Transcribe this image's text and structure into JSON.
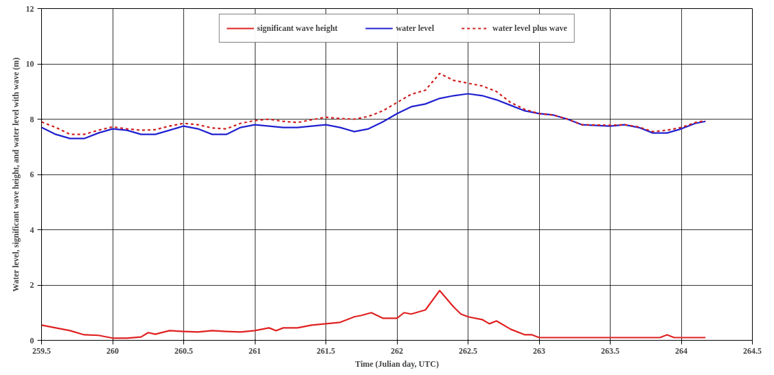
{
  "chart_data": {
    "type": "line",
    "xlabel": "Time (Julian day, UTC)",
    "ylabel": "Water level, significant wave height, and water level with wave (m)",
    "xlim": [
      259.5,
      264.5
    ],
    "xticks": [
      259.5,
      260,
      260.5,
      261,
      261.5,
      262,
      262.5,
      263,
      263.5,
      264,
      264.5
    ],
    "ylim": [
      0,
      12
    ],
    "yticks": [
      0,
      2,
      4,
      6,
      8,
      10,
      12
    ],
    "grid": true,
    "legend": "top",
    "marker": "none",
    "series": [
      {
        "name": "significant wave height",
        "color": "#e02020",
        "line_style": "solid",
        "x": [
          259.5,
          259.6,
          259.7,
          259.8,
          259.9,
          260.0,
          260.1,
          260.2,
          260.25,
          260.3,
          260.4,
          260.5,
          260.6,
          260.7,
          260.8,
          260.9,
          261.0,
          261.1,
          261.15,
          261.2,
          261.3,
          261.4,
          261.5,
          261.6,
          261.7,
          261.75,
          261.82,
          261.9,
          262.0,
          262.05,
          262.1,
          262.2,
          262.3,
          262.4,
          262.45,
          262.5,
          262.6,
          262.65,
          262.7,
          262.8,
          262.9,
          262.95,
          263.0,
          263.3,
          263.5,
          263.7,
          263.85,
          263.9,
          263.95,
          264.17
        ],
        "values": [
          0.55,
          0.45,
          0.35,
          0.2,
          0.18,
          0.08,
          0.08,
          0.12,
          0.28,
          0.22,
          0.35,
          0.32,
          0.3,
          0.35,
          0.32,
          0.3,
          0.35,
          0.45,
          0.35,
          0.45,
          0.45,
          0.55,
          0.6,
          0.65,
          0.85,
          0.9,
          1.0,
          0.8,
          0.8,
          1.0,
          0.95,
          1.1,
          1.8,
          1.2,
          0.95,
          0.85,
          0.75,
          0.6,
          0.7,
          0.4,
          0.2,
          0.2,
          0.1,
          0.1,
          0.1,
          0.1,
          0.1,
          0.2,
          0.1,
          0.1
        ]
      },
      {
        "name": "water level",
        "color": "#2020d0",
        "line_style": "solid",
        "x": [
          259.5,
          259.6,
          259.7,
          259.8,
          259.9,
          260.0,
          260.1,
          260.2,
          260.3,
          260.4,
          260.5,
          260.6,
          260.7,
          260.8,
          260.9,
          261.0,
          261.1,
          261.2,
          261.3,
          261.4,
          261.5,
          261.6,
          261.7,
          261.8,
          261.9,
          262.0,
          262.1,
          262.2,
          262.3,
          262.4,
          262.5,
          262.6,
          262.7,
          262.8,
          262.9,
          263.0,
          263.1,
          263.2,
          263.3,
          263.5,
          263.6,
          263.7,
          263.8,
          263.9,
          264.0,
          264.1,
          264.17
        ],
        "values": [
          7.7,
          7.45,
          7.3,
          7.3,
          7.5,
          7.65,
          7.6,
          7.45,
          7.45,
          7.6,
          7.75,
          7.65,
          7.45,
          7.45,
          7.7,
          7.8,
          7.75,
          7.7,
          7.7,
          7.75,
          7.8,
          7.7,
          7.55,
          7.65,
          7.9,
          8.2,
          8.45,
          8.55,
          8.75,
          8.85,
          8.92,
          8.85,
          8.7,
          8.5,
          8.3,
          8.2,
          8.15,
          8.0,
          7.8,
          7.75,
          7.8,
          7.7,
          7.5,
          7.5,
          7.65,
          7.85,
          7.92
        ]
      },
      {
        "name": "water level plus wave",
        "color": "#d02020",
        "line_style": "dashed",
        "x": [
          259.5,
          259.6,
          259.7,
          259.8,
          259.9,
          260.0,
          260.1,
          260.2,
          260.3,
          260.4,
          260.5,
          260.6,
          260.7,
          260.8,
          260.9,
          261.0,
          261.1,
          261.2,
          261.3,
          261.4,
          261.5,
          261.6,
          261.7,
          261.8,
          261.9,
          262.0,
          262.1,
          262.2,
          262.3,
          262.4,
          262.5,
          262.6,
          262.7,
          262.8,
          262.9,
          263.0,
          263.1,
          263.2,
          263.3,
          263.5,
          263.6,
          263.7,
          263.8,
          263.9,
          264.0,
          264.1,
          264.17
        ],
        "values": [
          7.9,
          7.7,
          7.45,
          7.45,
          7.6,
          7.72,
          7.65,
          7.6,
          7.62,
          7.75,
          7.85,
          7.8,
          7.68,
          7.65,
          7.85,
          7.95,
          8.0,
          7.92,
          7.88,
          7.98,
          8.07,
          8.02,
          8.0,
          8.1,
          8.3,
          8.6,
          8.9,
          9.05,
          9.65,
          9.4,
          9.3,
          9.2,
          9.0,
          8.6,
          8.35,
          8.2,
          8.15,
          8.0,
          7.8,
          7.78,
          7.8,
          7.72,
          7.55,
          7.6,
          7.7,
          7.88,
          7.95
        ]
      }
    ]
  }
}
